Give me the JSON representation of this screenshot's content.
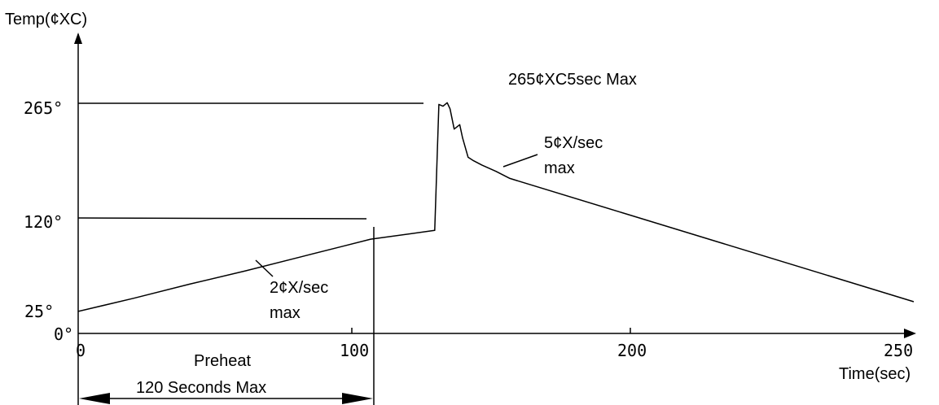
{
  "chart_data": {
    "type": "line",
    "y_axis_title": "Temp(¢XC)",
    "x_axis_title": "Time(sec)",
    "x_ticks": [
      "0",
      "100",
      "200",
      "250"
    ],
    "y_ticks": [
      "0°",
      "25°",
      "120°",
      "265°"
    ],
    "annotations": {
      "peak": "265¢XC5sec Max",
      "cooling_rate_1": "5¢X/sec",
      "cooling_rate_2": "max",
      "heating_rate_1": "2¢X/sec",
      "heating_rate_2": "max",
      "preheat_1": "Preheat",
      "preheat_2": "120 Seconds Max"
    },
    "series": [
      {
        "x": [
          0,
          20,
          40,
          60,
          80,
          95,
          105,
          128,
          129.5,
          131,
          132.5,
          133.5,
          135,
          137,
          138,
          140,
          142,
          145,
          150,
          155,
          300
        ],
        "y": [
          25,
          40,
          56,
          71,
          87,
          99,
          107,
          117,
          260,
          258,
          262,
          255,
          232,
          237,
          222,
          200,
          196,
          191,
          184,
          176,
          36
        ]
      }
    ],
    "xlim": [
      0,
      320
    ],
    "ylim": [
      0,
      300
    ]
  }
}
